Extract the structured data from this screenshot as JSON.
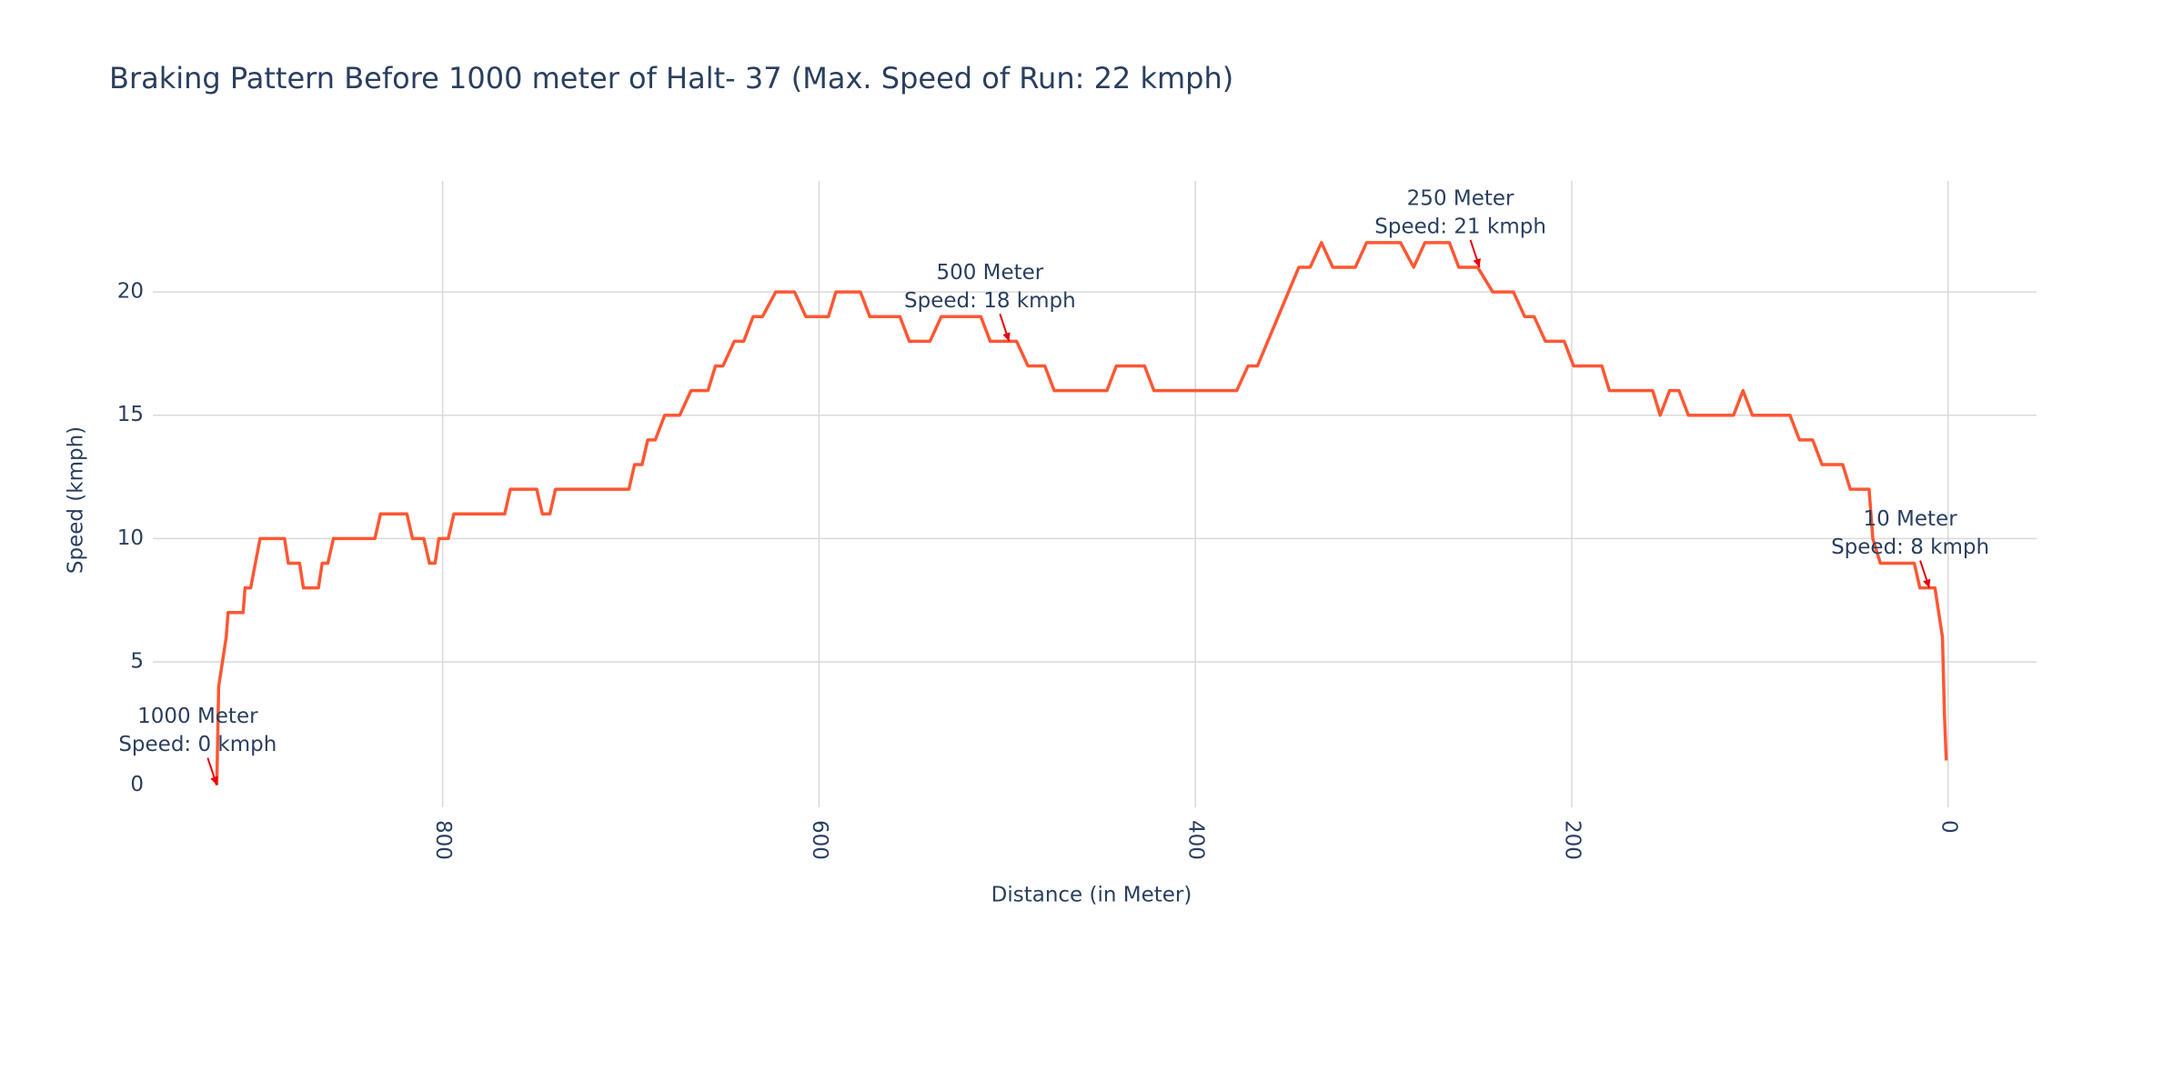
{
  "chart_data": {
    "type": "line",
    "title": "Braking Pattern Before 1000 meter of Halt- 37 (Max. Speed of Run: 22 kmph)",
    "x_label": "Distance (in Meter)",
    "y_label": "Speed (kmph)",
    "x": [
      920,
      919,
      917,
      915,
      914,
      906,
      905,
      902,
      897,
      884,
      882,
      876,
      874,
      866,
      864,
      861,
      858,
      836,
      833,
      819,
      816,
      810,
      807,
      804,
      802,
      797,
      794,
      767,
      764,
      750,
      747,
      743,
      740,
      701,
      698,
      694,
      691,
      687,
      682,
      674,
      668,
      659,
      655,
      651,
      645,
      640,
      635,
      630,
      623,
      613,
      607,
      595,
      591,
      578,
      573,
      557,
      552,
      541,
      535,
      514,
      509,
      495,
      489,
      480,
      475,
      447,
      442,
      427,
      422,
      378,
      372,
      367,
      356,
      345,
      339,
      333,
      327,
      315,
      309,
      291,
      284,
      278,
      265,
      260,
      250,
      242,
      231,
      225,
      220,
      214,
      204,
      199,
      184,
      180,
      157,
      153,
      148,
      143,
      138,
      114,
      109,
      104,
      84,
      79,
      72,
      67,
      56,
      52,
      42,
      40,
      36,
      18,
      15,
      7,
      3,
      2,
      1
    ],
    "series": [
      {
        "name": "Speed",
        "color": "#ff5733",
        "values": [
          0,
          4,
          5,
          6,
          7,
          7,
          8,
          8,
          10,
          10,
          9,
          9,
          8,
          8,
          9,
          9,
          10,
          10,
          11,
          11,
          10,
          10,
          9,
          9,
          10,
          10,
          11,
          11,
          12,
          12,
          11,
          11,
          12,
          12,
          13,
          13,
          14,
          14,
          15,
          15,
          16,
          16,
          17,
          17,
          18,
          18,
          19,
          19,
          20,
          20,
          19,
          19,
          20,
          20,
          19,
          19,
          18,
          18,
          19,
          19,
          18,
          18,
          17,
          17,
          16,
          16,
          17,
          17,
          16,
          16,
          17,
          17,
          19,
          21,
          21,
          22,
          21,
          21,
          22,
          22,
          21,
          22,
          22,
          21,
          21,
          20,
          20,
          19,
          19,
          18,
          18,
          17,
          17,
          16,
          16,
          15,
          16,
          16,
          15,
          15,
          16,
          15,
          15,
          14,
          14,
          13,
          13,
          12,
          12,
          10,
          9,
          9,
          8,
          8,
          6,
          3,
          1
        ]
      }
    ],
    "annotations": [
      {
        "x": 920,
        "y": 0,
        "text": [
          "1000 Meter",
          "Speed: 0 kmph"
        ]
      },
      {
        "x": 499,
        "y": 18,
        "text": [
          "500 Meter",
          "Speed: 18 kmph"
        ]
      },
      {
        "x": 249,
        "y": 21,
        "text": [
          "250 Meter",
          "Speed: 21 kmph"
        ]
      },
      {
        "x": 10,
        "y": 8,
        "text": [
          "10 Meter",
          "Speed: 8 kmph"
        ]
      }
    ],
    "xlim": [
      954,
      -47
    ],
    "xticks": [
      800,
      600,
      400,
      200,
      0
    ],
    "ylim": [
      -0.9,
      24.5
    ],
    "yticks": [
      0,
      5,
      10,
      15,
      20
    ],
    "grid": true
  }
}
